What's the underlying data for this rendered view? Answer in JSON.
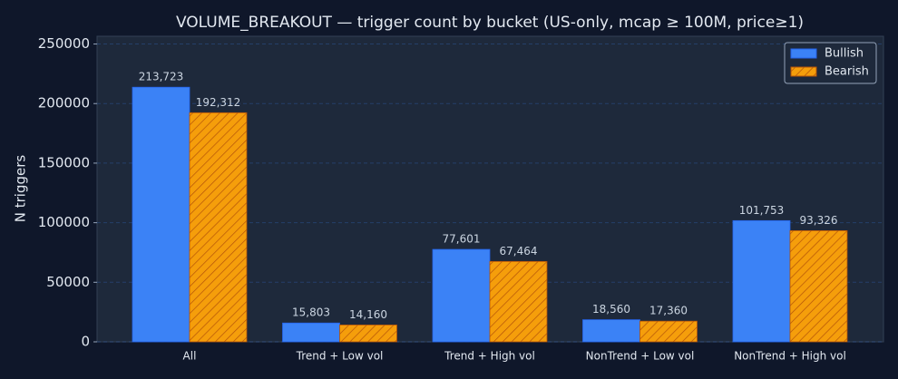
{
  "chart_data": {
    "type": "bar",
    "title": "VOLUME_BREAKOUT — trigger count by bucket (US-only, mcap ≥ 100M, price≥1)",
    "y_label": "N triggers",
    "categories": [
      "All",
      "Trend + Low vol",
      "Trend + High vol",
      "NonTrend + Low vol",
      "NonTrend + High vol"
    ],
    "series": [
      {
        "name": "Bullish",
        "color": "#3b82f6",
        "values": [
          213723,
          15803,
          77601,
          18560,
          101753
        ],
        "value_labels": [
          "213,723",
          "15,803",
          "77,601",
          "18,560",
          "101,753"
        ]
      },
      {
        "name": "Bearish",
        "color": "#f59e0b",
        "hatch": "#b45309",
        "values": [
          192312,
          14160,
          67464,
          17360,
          93326
        ],
        "value_labels": [
          "192,312",
          "14,160",
          "67,464",
          "17,360",
          "93,326"
        ]
      }
    ],
    "ylim": [
      0,
      256500
    ],
    "yticks": [
      0,
      50000,
      100000,
      150000,
      200000,
      250000
    ],
    "grid": true,
    "legend": "upper right"
  }
}
